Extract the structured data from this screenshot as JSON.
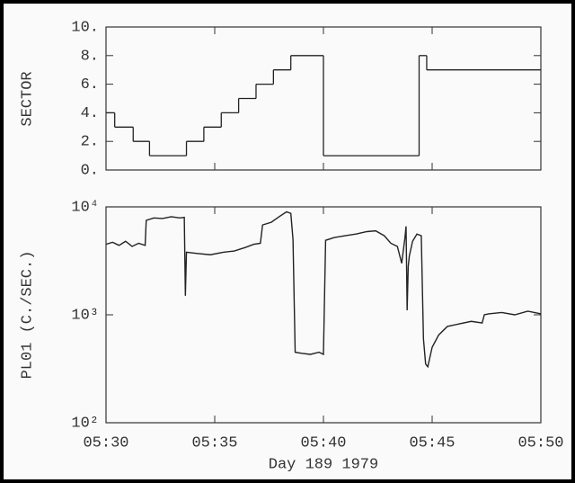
{
  "chart_data": [
    {
      "type": "step",
      "y_label": "SECTOR",
      "x": [
        330,
        330.4,
        331.25,
        332,
        333.7,
        334.5,
        335.3,
        336.1,
        336.9,
        337.7,
        338.5,
        340,
        344.4,
        344.75,
        350
      ],
      "values": [
        4,
        3,
        2,
        1,
        2,
        3,
        4,
        5,
        6,
        7,
        8,
        1,
        8,
        7,
        7
      ],
      "color": "#222222",
      "xlim": [
        330,
        350
      ],
      "ylim": [
        0,
        10
      ],
      "yticks": [
        {
          "value": 0,
          "label": "0."
        },
        {
          "value": 2,
          "label": "2."
        },
        {
          "value": 4,
          "label": "4."
        },
        {
          "value": 6,
          "label": "6."
        },
        {
          "value": 8,
          "label": "8."
        },
        {
          "value": 10,
          "label": "10."
        }
      ]
    },
    {
      "type": "line",
      "y_label": "PL01 (C./SEC.)",
      "x_label": "Day 189 1979",
      "log_scale": true,
      "x": [
        330,
        330.3,
        330.6,
        330.9,
        331.2,
        331.5,
        331.8,
        331.85,
        332.2,
        332.6,
        333,
        333.4,
        333.6,
        333.65,
        333.7,
        334.2,
        334.8,
        335.4,
        335.9,
        336.4,
        336.8,
        337.1,
        337.2,
        337.6,
        338,
        338.3,
        338.5,
        338.6,
        338.7,
        339,
        339.4,
        339.8,
        340,
        340.1,
        340.5,
        341,
        341.5,
        342,
        342.4,
        342.8,
        343.1,
        343.4,
        343.6,
        343.75,
        343.8,
        343.85,
        343.9,
        343.95,
        344.1,
        344.3,
        344.5,
        344.6,
        344.7,
        344.8,
        345,
        345.3,
        345.7,
        346.2,
        346.8,
        347.3,
        347.4,
        347.6,
        348.2,
        348.8,
        349.4,
        350
      ],
      "values": [
        4500,
        4700,
        4400,
        4800,
        4300,
        4600,
        4400,
        7500,
        7900,
        7800,
        8100,
        7900,
        8000,
        1500,
        3800,
        3700,
        3600,
        3800,
        3900,
        4200,
        4500,
        4600,
        6800,
        7200,
        8200,
        9000,
        8700,
        5000,
        450,
        440,
        430,
        450,
        430,
        4900,
        5200,
        5400,
        5600,
        5900,
        6000,
        5400,
        4600,
        4300,
        3000,
        5200,
        6600,
        1100,
        2800,
        3500,
        4800,
        5600,
        5400,
        600,
        350,
        330,
        500,
        650,
        780,
        820,
        870,
        840,
        1000,
        1020,
        1050,
        1000,
        1080,
        1020
      ],
      "color": "#222222",
      "xlim": [
        330,
        350
      ],
      "xticks": [
        {
          "value": 330,
          "label": "05:30"
        },
        {
          "value": 335,
          "label": "05:35"
        },
        {
          "value": 340,
          "label": "05:40"
        },
        {
          "value": 345,
          "label": "05:45"
        },
        {
          "value": 350,
          "label": "05:50"
        }
      ],
      "ylim": [
        100,
        10000
      ],
      "yticks": [
        {
          "value": 100,
          "label": "10²"
        },
        {
          "value": 1000,
          "label": "10³"
        },
        {
          "value": 10000,
          "label": "10⁴"
        }
      ]
    }
  ]
}
